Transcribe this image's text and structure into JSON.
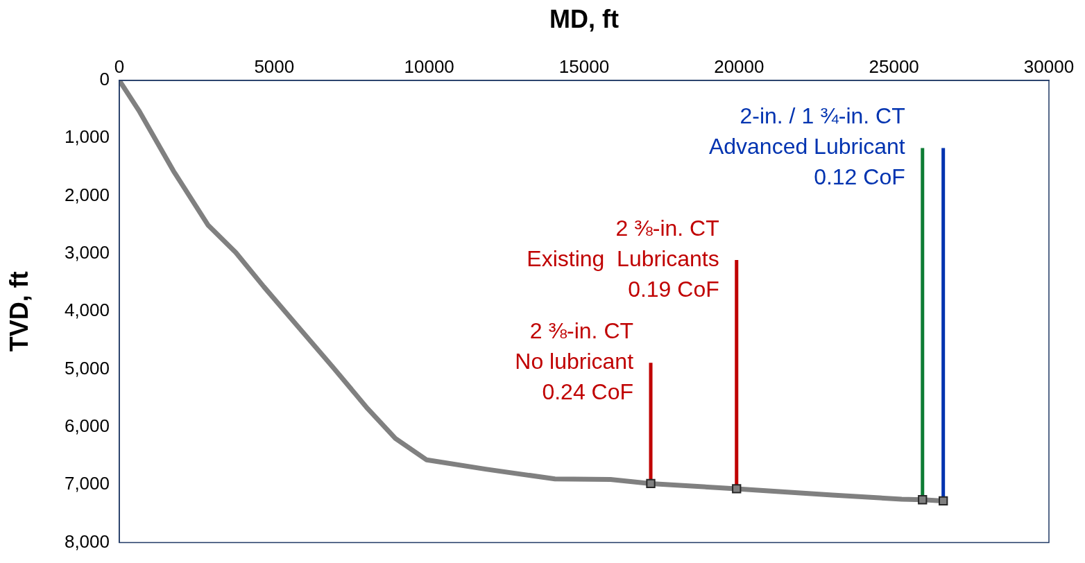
{
  "chart_data": {
    "type": "line",
    "xlabel": "MD, ft",
    "ylabel": "TVD, ft",
    "xlim": [
      0,
      30000
    ],
    "xticks": [
      0,
      5000,
      10000,
      15000,
      20000,
      25000,
      30000
    ],
    "ylim": [
      8000,
      0
    ],
    "yticks": [
      {
        "value": 0,
        "label": "0"
      },
      {
        "value": 1000,
        "label": "1,000"
      },
      {
        "value": 2000,
        "label": "2,000"
      },
      {
        "value": 3000,
        "label": "3,000"
      },
      {
        "value": 4000,
        "label": "4,000"
      },
      {
        "value": 5000,
        "label": "5,000"
      },
      {
        "value": 6000,
        "label": "6,000"
      },
      {
        "value": 7000,
        "label": "7,000"
      },
      {
        "value": 8000,
        "label": "8,000"
      }
    ],
    "grid": false,
    "legend": false,
    "series": [
      {
        "color": "#808080",
        "x": [
          0,
          630,
          1750,
          2870,
          3760,
          4660,
          5780,
          6900,
          8010,
          8910,
          9920,
          11820,
          14060,
          15850,
          17150,
          19920,
          23010,
          25250,
          25920,
          26590
        ],
        "values": [
          0,
          520,
          1570,
          2510,
          2980,
          3570,
          4270,
          4970,
          5680,
          6200,
          6570,
          6730,
          6900,
          6910,
          6980,
          7070,
          7180,
          7250,
          7260,
          7280
        ]
      },
      {
        "type": "scatter",
        "marker": "square",
        "color": "#808080",
        "x": [
          17150,
          19920,
          25920,
          26590
        ],
        "values": [
          6980,
          7070,
          7260,
          7280
        ]
      },
      {
        "color": "#c00000",
        "x": [
          17150,
          17150
        ],
        "values": [
          6980,
          4890
        ]
      },
      {
        "color": "#c00000",
        "x": [
          19920,
          19920
        ],
        "values": [
          7070,
          3110
        ]
      },
      {
        "color": "#0e7c34",
        "x": [
          25920,
          25920
        ],
        "values": [
          7260,
          1170
        ]
      },
      {
        "color": "#0033b0",
        "x": [
          26590,
          26590
        ],
        "values": [
          7280,
          1170
        ]
      }
    ],
    "annotations": [
      {
        "text": "2 ⅜-in. CT\nNo lubricant\n0.24 CoF",
        "x": 17150,
        "y": 4890
      },
      {
        "text": "2 ⅜-in. CT\nExisting  Lubricants\n0.19 CoF",
        "x": 19920,
        "y": 3110
      },
      {
        "text": "2-in. / 1 ¾-in. CT\nAdvanced Lubricant\n0.12 CoF",
        "x": 25920,
        "y": 1170
      }
    ]
  }
}
